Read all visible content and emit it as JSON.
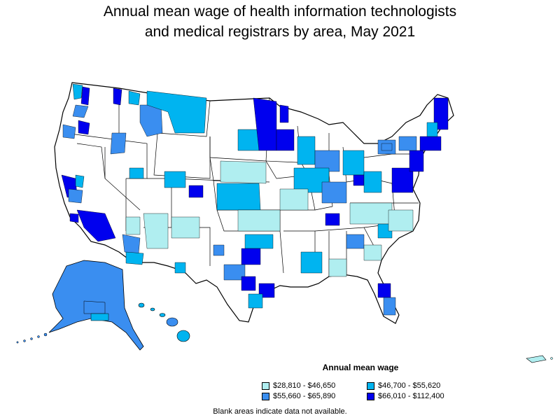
{
  "title": {
    "line1": "Annual mean wage of health information technologists",
    "line2": "and medical registrars by area, May 2021"
  },
  "legend": {
    "title": "Annual mean wage",
    "items": [
      {
        "label": "$28,810 - $46,650",
        "color": "#b0eef0"
      },
      {
        "label": "$46,700 - $55,620",
        "color": "#00b4f0"
      },
      {
        "label": "$55,660 - $65,890",
        "color": "#3a8ef0"
      },
      {
        "label": "$66,010 - $112,400",
        "color": "#0000ee"
      }
    ]
  },
  "footnote": "Blank areas indicate data not available.",
  "map_colors": {
    "no_data": "#ffffff",
    "border": "#000000"
  }
}
